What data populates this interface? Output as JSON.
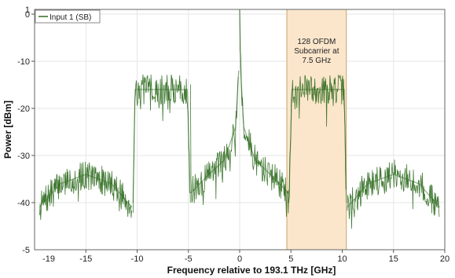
{
  "chart_data": {
    "type": "line",
    "title": "",
    "xlabel": "Frequency relative to 193.1 THz [GHz]",
    "ylabel": "Power [dBm]",
    "xlim": [
      -20,
      20
    ],
    "ylim": [
      -50,
      1
    ],
    "x_ticks": [
      -15,
      -10,
      -5,
      0,
      5,
      10,
      15,
      20
    ],
    "y_ticks": [
      0,
      -10,
      -20,
      -30,
      -40
    ],
    "y_tick_labels": [
      "0",
      "-10",
      "-20",
      "-30",
      "-40"
    ],
    "edge_labels": {
      "x_left": "-19",
      "y_top": "1",
      "y_bottom": "-5"
    },
    "legend": {
      "label": "Input 1 (SB)",
      "placement": "top-left"
    },
    "series": [
      {
        "name": "Input 1 (SB)",
        "color": "#2f6b1f",
        "segments": [
          {
            "x": [
              -19.5,
              -17.5,
              -15,
              -12.5,
              -10.5
            ],
            "y": [
              -41,
              -36,
              -34,
              -36,
              -41
            ]
          },
          {
            "x": [
              -10.4,
              -10.2,
              -5.1,
              -4.8
            ],
            "y": [
              -40,
              -16,
              -16,
              -40
            ]
          },
          {
            "x": [
              -4.8,
              -3,
              -1.5,
              -0.4,
              -0.1
            ],
            "y": [
              -38,
              -34,
              -31,
              -24,
              -12
            ]
          },
          {
            "x": [
              0,
              0.1,
              0.4,
              1.5,
              3,
              4.8
            ],
            "y": [
              1,
              -12,
              -24,
              -31,
              -34,
              -38
            ]
          },
          {
            "x": [
              4.8,
              5.1,
              10.2,
              10.4
            ],
            "y": [
              -40,
              -16,
              -16,
              -40
            ]
          },
          {
            "x": [
              10.5,
              12.5,
              15,
              17.5,
              19.5
            ],
            "y": [
              -41,
              -36,
              -34,
              -36,
              -41
            ]
          }
        ]
      }
    ],
    "annotation": {
      "lines": [
        "128 OFDM",
        "Subcarrier at",
        "7.5 GHz"
      ],
      "x_range": [
        4.6,
        10.4
      ],
      "fill": "#fbe6cc",
      "border": "#c9a46b"
    },
    "grid": true
  }
}
